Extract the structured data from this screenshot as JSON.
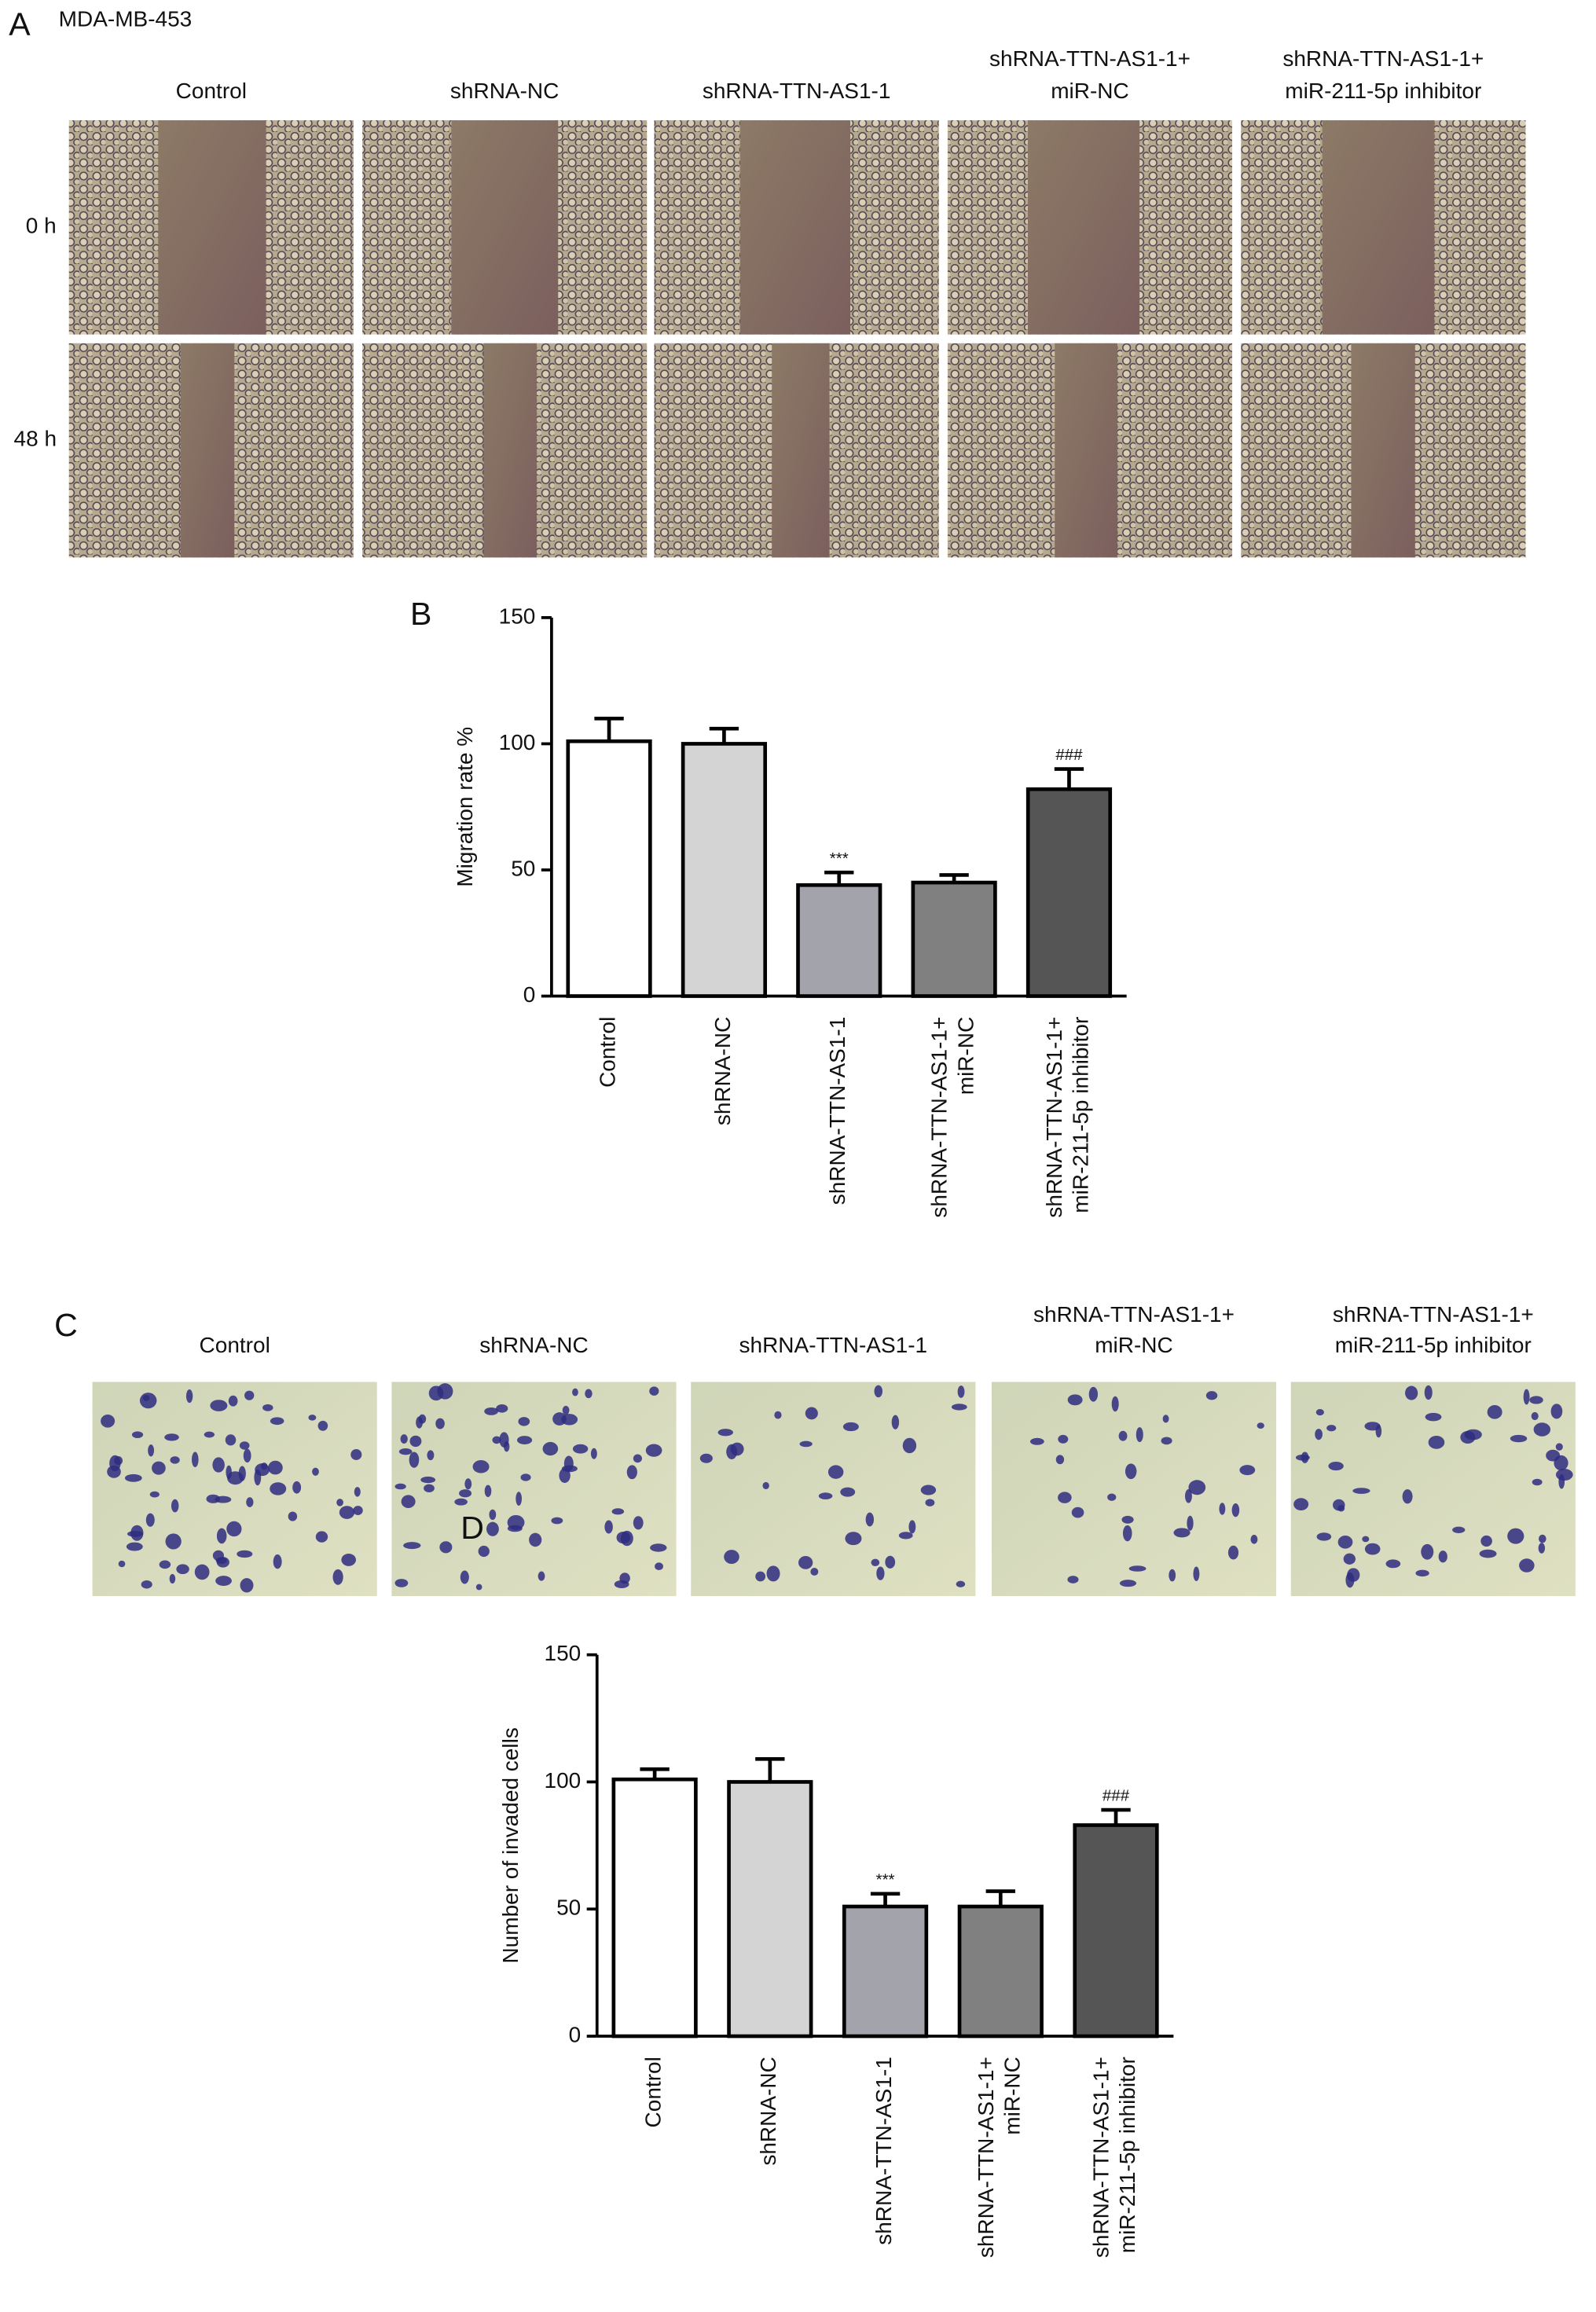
{
  "panel_a": {
    "label": "A",
    "cell_line": "MDA-MB-453",
    "columns": [
      [
        "Control"
      ],
      [
        "shRNA-NC"
      ],
      [
        "shRNA-TTN-AS1-1"
      ],
      [
        "shRNA-TTN-AS1-1+",
        "miR-NC"
      ],
      [
        "shRNA-TTN-AS1-1+",
        "miR-211-5p inhibitor"
      ]
    ],
    "rows": [
      "0 h",
      "48 h"
    ]
  },
  "panel_c": {
    "label": "C",
    "columns": [
      [
        "Control"
      ],
      [
        "shRNA-NC"
      ],
      [
        "shRNA-TTN-AS1-1"
      ],
      [
        "shRNA-TTN-AS1-1+",
        "miR-NC"
      ],
      [
        "shRNA-TTN-AS1-1+",
        "miR-211-5p inhibitor"
      ]
    ]
  },
  "chart_data": [
    {
      "type": "bar",
      "panel": "B",
      "ylabel": "Migration rate %",
      "categories": [
        [
          "Control"
        ],
        [
          "shRNA-NC"
        ],
        [
          "shRNA-TTN-AS1-1"
        ],
        [
          "shRNA-TTN-AS1-1+",
          "miR-NC"
        ],
        [
          "shRNA-TTN-AS1-1+",
          "miR-211-5p inhibitor"
        ]
      ],
      "values": [
        101,
        100,
        44,
        45,
        82
      ],
      "errors": [
        9,
        6,
        5,
        3,
        8
      ],
      "colors": [
        "#ffffff",
        "#d4d4d4",
        "#a3a3ab",
        "#808080",
        "#555555"
      ],
      "annotations": [
        null,
        null,
        "***",
        null,
        "###"
      ],
      "ylim": [
        0,
        150
      ],
      "yticks": [
        0,
        50,
        100,
        150
      ]
    },
    {
      "type": "bar",
      "panel": "D",
      "ylabel": "Number of invaded cells",
      "categories": [
        [
          "Control"
        ],
        [
          "shRNA-NC"
        ],
        [
          "shRNA-TTN-AS1-1"
        ],
        [
          "shRNA-TTN-AS1-1+",
          "miR-NC"
        ],
        [
          "shRNA-TTN-AS1-1+",
          "miR-211-5p inhibitor"
        ]
      ],
      "values": [
        101,
        100,
        51,
        51,
        83
      ],
      "errors": [
        4,
        9,
        5,
        6,
        6
      ],
      "colors": [
        "#ffffff",
        "#d4d4d4",
        "#a3a3ab",
        "#808080",
        "#555555"
      ],
      "annotations": [
        null,
        null,
        "***",
        null,
        "###"
      ],
      "ylim": [
        0,
        150
      ],
      "yticks": [
        0,
        50,
        100,
        150
      ]
    }
  ]
}
